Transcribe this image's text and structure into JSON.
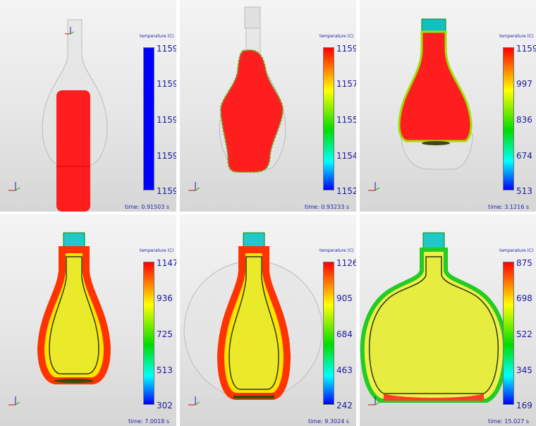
{
  "panels": [
    {
      "legend_title": "temperature (C)",
      "ticks": [
        "1159",
        "1159",
        "1159",
        "1159",
        "1159"
      ],
      "time": "time: 0.91503 s"
    },
    {
      "legend_title": "temperature (C)",
      "ticks": [
        "1159",
        "1157",
        "1155",
        "1154",
        "1152"
      ],
      "time": "time: 0.93233 s"
    },
    {
      "legend_title": "temperature (C)",
      "ticks": [
        "1159",
        "997",
        "836",
        "674",
        "513"
      ],
      "time": "time: 3.1216 s"
    },
    {
      "legend_title": "temperature (C)",
      "ticks": [
        "1147",
        "936",
        "725",
        "513",
        "302"
      ],
      "time": "time: 7.0018 s"
    },
    {
      "legend_title": "temperature (C)",
      "ticks": [
        "1126",
        "905",
        "684",
        "463",
        "242"
      ],
      "time": "time: 9.3024 s"
    },
    {
      "legend_title": "temperature (C)",
      "ticks": [
        "875",
        "698",
        "522",
        "345",
        "169"
      ],
      "time": "time: 15.027 s"
    }
  ],
  "colors": {
    "hot": "#ff0000",
    "warm": "#ffff00",
    "mid": "#00dd00",
    "cool": "#00ffff",
    "cold": "#0000ff",
    "glass": "#e3e3e3"
  }
}
